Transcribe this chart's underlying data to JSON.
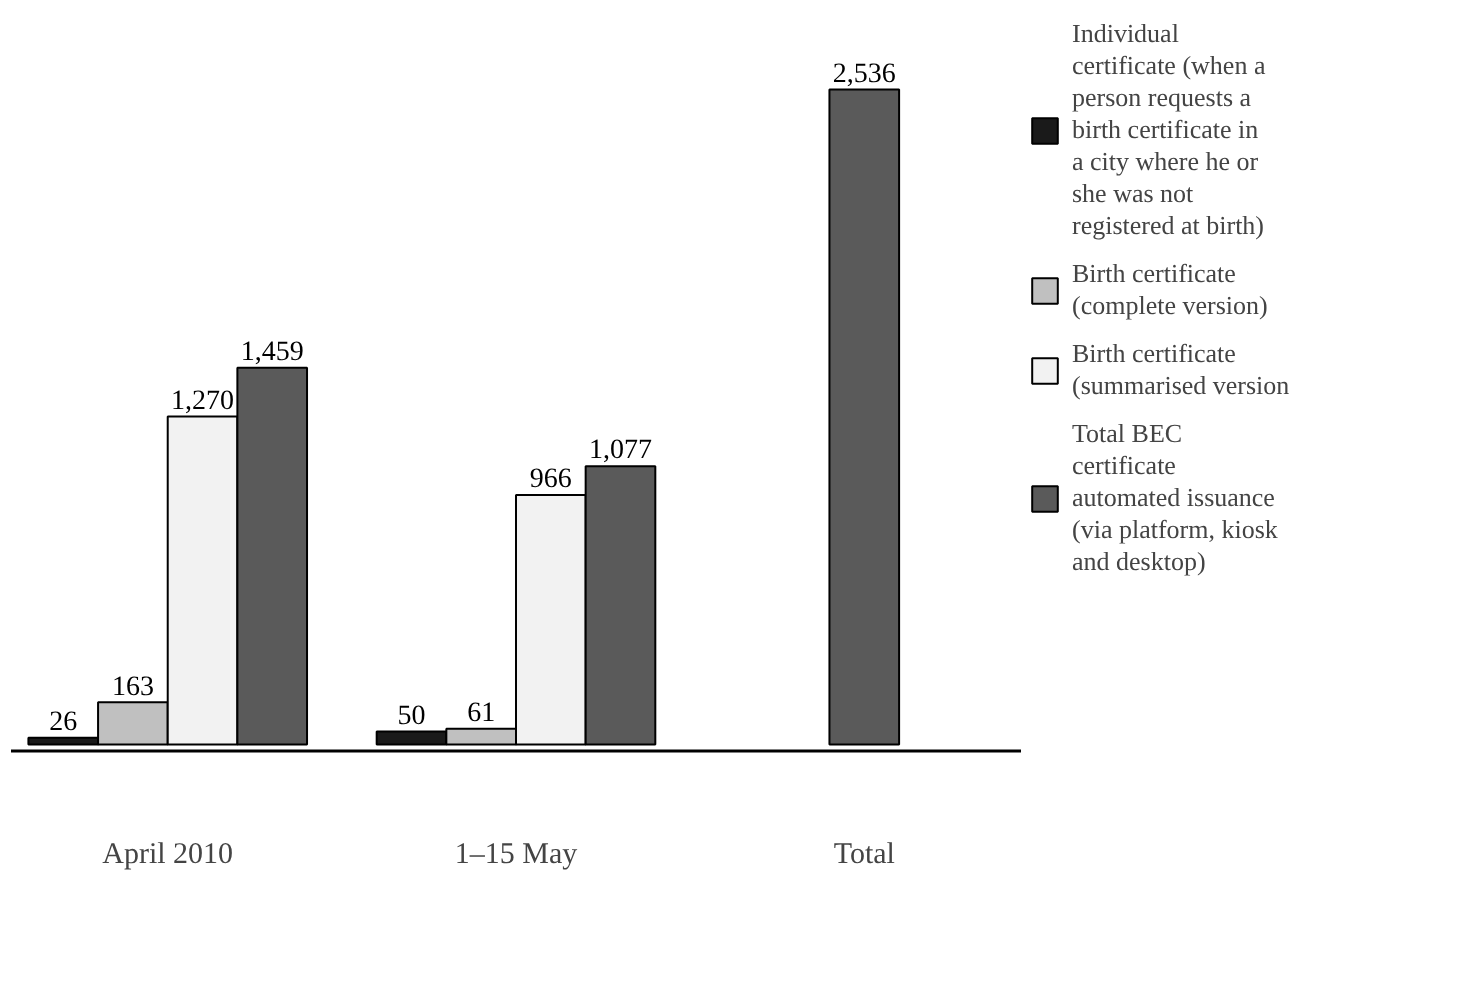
{
  "chart_data": {
    "type": "bar",
    "categories": [
      "April 2010",
      "1–15 May",
      "Total"
    ],
    "series": [
      {
        "name": "Individual certificate (when a person requests a birth certificate in a city where he or she was not registered at birth)",
        "color": "#1a1a1a",
        "values": [
          26,
          50,
          null
        ],
        "value_labels": [
          "26",
          "50",
          null
        ]
      },
      {
        "name": "Birth certificate (complete version)",
        "color": "#c0c0c0",
        "values": [
          163,
          61,
          null
        ],
        "value_labels": [
          "163",
          "61",
          null
        ]
      },
      {
        "name": "Birth certificate (summarised version",
        "color": "#f2f2f2",
        "values": [
          1270,
          966,
          null
        ],
        "value_labels": [
          "1,270",
          "966",
          null
        ]
      },
      {
        "name": "Total BEC certificate automated issuance (via platform, kiosk and desktop)",
        "color": "#5a5a5a",
        "values": [
          1459,
          1077,
          2536
        ],
        "value_labels": [
          "1,459",
          "1,077",
          "2,536"
        ]
      }
    ],
    "legend": "right",
    "grid": false
  }
}
